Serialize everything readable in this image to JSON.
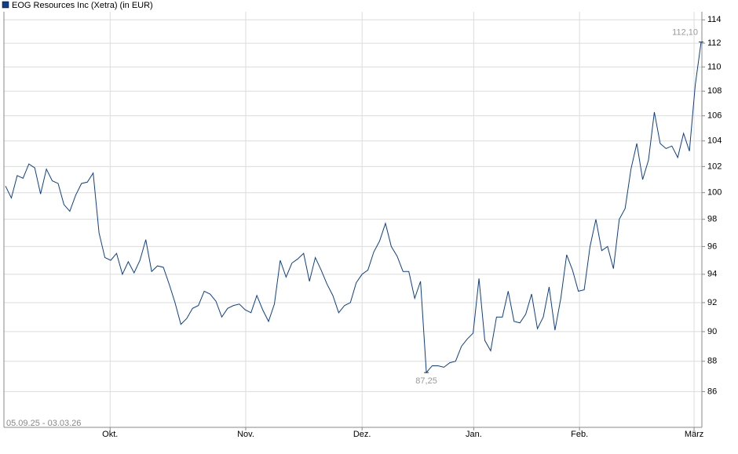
{
  "chart_data": {
    "type": "line",
    "subtitle": "05.09.25 - 03.03.26",
    "series": [
      {
        "name": "EOG Resources Inc (Xetra) (in EUR)",
        "color": "#0d3f8f",
        "values": [
          100.5,
          99.6,
          101.3,
          101.1,
          102.2,
          101.9,
          99.9,
          101.8,
          100.9,
          100.7,
          99.1,
          98.6,
          99.8,
          100.7,
          100.8,
          101.5,
          97.0,
          95.2,
          95.0,
          95.5,
          94.0,
          94.9,
          94.1,
          95.0,
          96.5,
          94.2,
          94.6,
          94.5,
          93.3,
          92.0,
          90.5,
          90.9,
          91.6,
          91.8,
          92.8,
          92.6,
          92.1,
          91.0,
          91.6,
          91.8,
          91.9,
          91.5,
          91.3,
          92.5,
          91.5,
          90.7,
          91.9,
          95.0,
          93.8,
          94.8,
          95.1,
          95.5,
          93.5,
          95.2,
          94.3,
          93.3,
          92.5,
          91.3,
          91.8,
          92.0,
          93.4,
          94.0,
          94.3,
          95.6,
          96.4,
          97.7,
          96.0,
          95.3,
          94.2,
          94.2,
          92.3,
          93.5,
          87.25,
          87.7,
          87.7,
          87.6,
          87.9,
          88.0,
          89.0,
          89.5,
          89.9,
          93.7,
          89.4,
          88.7,
          91.0,
          91.0,
          92.8,
          90.7,
          90.6,
          91.2,
          92.6,
          90.2,
          91.0,
          93.1,
          90.1,
          92.3,
          95.4,
          94.3,
          92.8,
          92.9,
          96.0,
          98.0,
          95.7,
          96.0,
          94.4,
          98.0,
          98.8,
          101.8,
          103.8,
          101.0,
          102.5,
          106.3,
          103.8,
          103.4,
          103.6,
          102.7,
          104.6,
          103.2,
          108.5,
          112.1
        ],
        "value_labels": [
          null,
          null,
          null,
          null,
          null,
          null,
          null,
          null,
          null,
          null,
          null,
          null,
          null,
          null,
          null,
          null,
          null,
          null,
          null,
          null,
          null,
          null,
          null,
          null,
          null,
          null,
          null,
          null,
          null,
          null,
          null,
          null,
          null,
          null,
          null,
          null,
          null,
          null,
          null,
          null,
          null,
          null,
          null,
          null,
          null,
          null,
          null,
          null,
          null,
          null,
          null,
          null,
          null,
          null,
          null,
          null,
          null,
          null,
          null,
          null,
          null,
          null,
          null,
          null,
          null,
          null,
          null,
          null,
          null,
          null,
          null,
          null,
          "87,25",
          null,
          null,
          null,
          null,
          null,
          null,
          null,
          null,
          null,
          null,
          null,
          null,
          null,
          null,
          null,
          null,
          null,
          null,
          null,
          null,
          null,
          null,
          null,
          null,
          null,
          null,
          null,
          null,
          null,
          null,
          null,
          null,
          null,
          null,
          null,
          null,
          null,
          null,
          null,
          null,
          null,
          null,
          null,
          null,
          null,
          null,
          "112,10"
        ]
      }
    ],
    "xlim": [
      0,
      119
    ],
    "xticks": [
      {
        "value": 17.9,
        "label": "Okt."
      },
      {
        "value": 41.1,
        "label": "Nov."
      },
      {
        "value": 61.0,
        "label": "Dez."
      },
      {
        "value": 80.1,
        "label": "Jan."
      },
      {
        "value": 98.2,
        "label": "Feb."
      },
      {
        "value": 117.8,
        "label": "März"
      }
    ],
    "ylim": [
      83.7,
      114.7
    ],
    "log_y": true,
    "yticks": [
      86,
      88,
      90,
      92,
      94,
      96,
      98,
      100,
      102,
      104,
      106,
      108,
      110,
      112,
      114
    ],
    "grid": true
  }
}
